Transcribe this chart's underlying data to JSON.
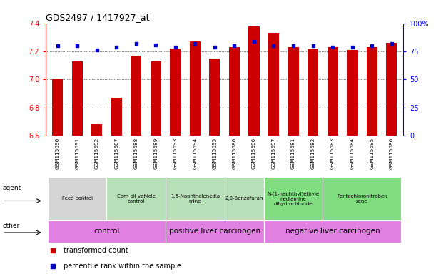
{
  "title": "GDS2497 / 1417927_at",
  "samples": [
    "GSM115690",
    "GSM115691",
    "GSM115692",
    "GSM115687",
    "GSM115688",
    "GSM115689",
    "GSM115693",
    "GSM115694",
    "GSM115695",
    "GSM115680",
    "GSM115696",
    "GSM115697",
    "GSM115681",
    "GSM115682",
    "GSM115683",
    "GSM115684",
    "GSM115685",
    "GSM115686"
  ],
  "transformed_count": [
    7.0,
    7.13,
    6.68,
    6.87,
    7.17,
    7.13,
    7.22,
    7.27,
    7.15,
    7.23,
    7.38,
    7.33,
    7.23,
    7.22,
    7.23,
    7.21,
    7.23,
    7.26
  ],
  "percentile_rank": [
    80,
    80,
    76,
    79,
    82,
    81,
    79,
    82,
    79,
    80,
    84,
    80,
    80,
    80,
    79,
    79,
    80,
    82
  ],
  "ylim_left": [
    6.6,
    7.4
  ],
  "ylim_right": [
    0,
    100
  ],
  "yticks_left": [
    6.6,
    6.8,
    7.0,
    7.2,
    7.4
  ],
  "yticks_right": [
    0,
    25,
    50,
    75,
    100
  ],
  "ytick_labels_right": [
    "0",
    "25",
    "50",
    "75",
    "100%"
  ],
  "bar_color": "#cc0000",
  "dot_color": "#0000cc",
  "bg_color": "#ffffff",
  "gridline_color": "#000000",
  "agent_groups": [
    {
      "label": "Feed control",
      "start": 0,
      "end": 2,
      "color": "#d4d4d4"
    },
    {
      "label": "Corn oil vehicle\ncontrol",
      "start": 3,
      "end": 5,
      "color": "#b8e0b8"
    },
    {
      "label": "1,5-Naphthalenedia\nmine",
      "start": 6,
      "end": 8,
      "color": "#b8e0b8"
    },
    {
      "label": "2,3-Benzofuran",
      "start": 9,
      "end": 10,
      "color": "#b8e0b8"
    },
    {
      "label": "N-(1-naphthyl)ethyle\nnediamine\ndihydrochloride",
      "start": 11,
      "end": 13,
      "color": "#80dd80"
    },
    {
      "label": "Pentachloronitroben\nzene",
      "start": 14,
      "end": 17,
      "color": "#80dd80"
    }
  ],
  "other_groups": [
    {
      "label": "control",
      "start": 0,
      "end": 5,
      "color": "#e080e0"
    },
    {
      "label": "positive liver carcinogen",
      "start": 6,
      "end": 10,
      "color": "#e080e0"
    },
    {
      "label": "negative liver carcinogen",
      "start": 11,
      "end": 17,
      "color": "#e080e0"
    }
  ],
  "legend_items": [
    {
      "label": "transformed count",
      "color": "#cc0000"
    },
    {
      "label": "percentile rank within the sample",
      "color": "#0000cc"
    }
  ]
}
